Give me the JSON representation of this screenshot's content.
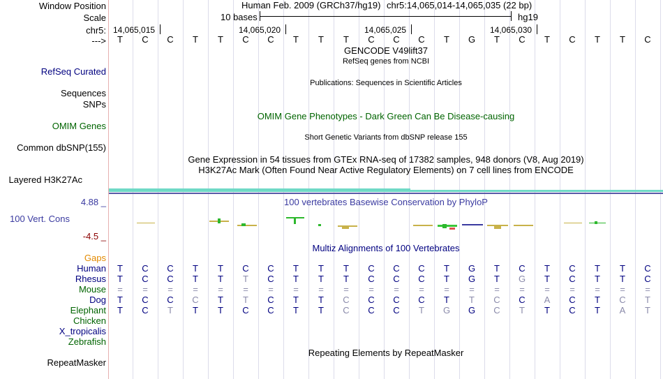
{
  "labels": {
    "window_position": "Window Position",
    "scale": "Scale",
    "chrom": "chr5:",
    "strand": "--->",
    "refseq": "RefSeq Curated",
    "sequences": "Sequences",
    "snps": "SNPs",
    "omim": "OMIM Genes",
    "dbsnp": "Common dbSNP(155)",
    "h3k27ac": "Layered H3K27Ac",
    "ymax": "4.88 _",
    "vertcons": "100 Vert. Cons",
    "ymin": "-4.5 _",
    "gaps": "Gaps",
    "human": "Human",
    "rhesus": "Rhesus",
    "mouse": "Mouse",
    "dog": "Dog",
    "elephant": "Elephant",
    "chicken": "Chicken",
    "xtrop": "X_tropicalis",
    "zebrafish": "Zebrafish",
    "repeatmasker": "RepeatMasker"
  },
  "header": {
    "assembly": "Human Feb. 2009 (GRCh37/hg19)",
    "position": "chr5:14,065,014-14,065,035 (22 bp)",
    "scale_text": "10 bases",
    "db": "hg19",
    "ticks": [
      "14,065,015",
      "14,065,020",
      "14,065,025",
      "14,065,030"
    ]
  },
  "sequence": [
    "T",
    "C",
    "C",
    "T",
    "T",
    "C",
    "C",
    "T",
    "T",
    "T",
    "C",
    "C",
    "C",
    "T",
    "G",
    "T",
    "C",
    "T",
    "C",
    "T",
    "T",
    "C"
  ],
  "tracks": {
    "gencode": "GENCODE V49lift37",
    "refseq_desc": "RefSeq genes from NCBI",
    "pubs": "Publications: Sequences in Scientific Articles",
    "omim_desc": "OMIM Gene Phenotypes - Dark Green Can Be Disease-causing",
    "dbsnp_desc": "Short Genetic Variants from dbSNP release 155",
    "gtex_desc": "Gene Expression in 54 tissues from GTEx RNA-seq of 17382 samples, 948 donors (V8, Aug 2019)",
    "h3k27ac_desc": "H3K27Ac Mark (Often Found Near Active Regulatory Elements) on 7 cell lines from ENCODE",
    "phylop_desc": "100 vertebrates Basewise Conservation by PhyloP",
    "multiz_desc": "Multiz Alignments of 100 Vertebrates",
    "rmsk_desc": "Repeating Elements by RepeatMasker"
  },
  "alignment": {
    "human": [
      "T",
      "C",
      "C",
      "T",
      "T",
      "C",
      "C",
      "T",
      "T",
      "T",
      "C",
      "C",
      "C",
      "T",
      "G",
      "T",
      "C",
      "T",
      "C",
      "T",
      "T",
      "C"
    ],
    "rhesus": [
      "T",
      "C",
      "C",
      "T",
      "T",
      "T",
      "C",
      "T",
      "T",
      "T",
      "C",
      "C",
      "C",
      "T",
      "G",
      "T",
      "G",
      "T",
      "C",
      "T",
      "T",
      "C"
    ],
    "mouse": [
      "=",
      "=",
      "=",
      "=",
      "=",
      "=",
      "=",
      "=",
      "=",
      "=",
      "=",
      "=",
      "=",
      "=",
      "=",
      "=",
      "=",
      "=",
      "=",
      "=",
      "=",
      "="
    ],
    "dog": [
      "T",
      "C",
      "C",
      "C",
      "T",
      "T",
      "C",
      "T",
      "T",
      "C",
      "C",
      "C",
      "C",
      "T",
      "T",
      "C",
      "C",
      "A",
      "C",
      "T",
      "C",
      "T"
    ],
    "elephant": [
      "T",
      "C",
      "T",
      "T",
      "T",
      "C",
      "C",
      "T",
      "T",
      "C",
      "C",
      "C",
      "T",
      "G",
      "G",
      "C",
      "T",
      "T",
      "C",
      "T",
      "A",
      "T"
    ]
  },
  "colors": {
    "label_blue": "#000080",
    "omim_green": "#006400",
    "gaps_orange": "#e38a00",
    "vertcons_blue": "#3a3aa0",
    "ymin_red": "#8b0000",
    "phylop_blue": "#3a3aa0",
    "mismatch_gray": "#8a8aaa"
  }
}
